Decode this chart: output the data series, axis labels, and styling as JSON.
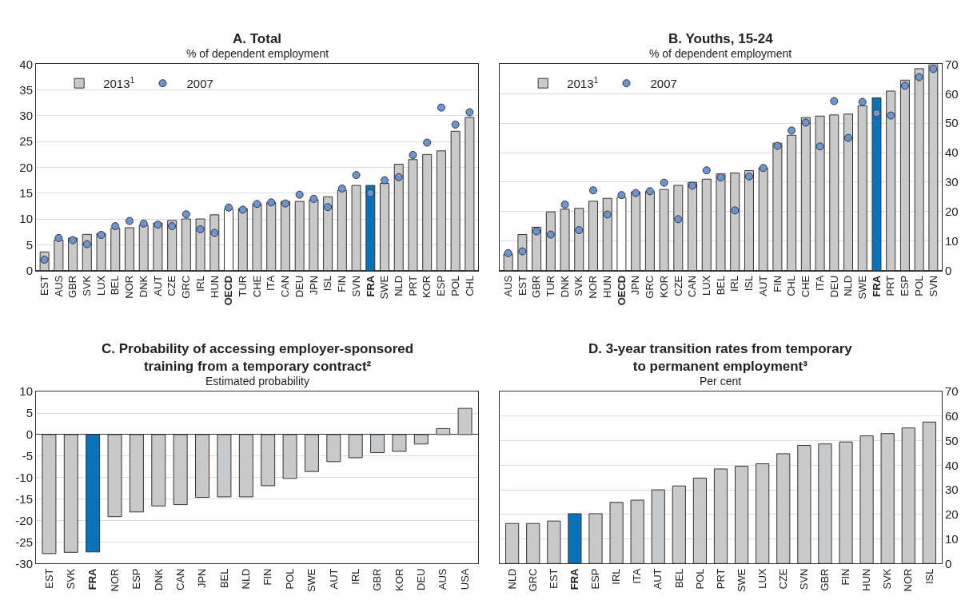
{
  "chart_data": [
    {
      "type": "bar",
      "title": "A. Total",
      "subtitle": "% of dependent employment",
      "categories": [
        "EST",
        "AUS",
        "GBR",
        "SVK",
        "LUX",
        "BEL",
        "NOR",
        "DNK",
        "AUT",
        "CZE",
        "GRC",
        "IRL",
        "HUN",
        "OECD",
        "TUR",
        "CHE",
        "ITA",
        "CAN",
        "DEU",
        "JPN",
        "ISL",
        "FIN",
        "SVN",
        "FRA",
        "SWE",
        "NLD",
        "PRT",
        "KOR",
        "ESP",
        "POL",
        "CHL"
      ],
      "series": [
        {
          "name": "2013$^{1}$",
          "color": "#c8c9cb",
          "colors": [
            "#c8c9cb",
            "#c8c9cb",
            "#c8c9cb",
            "#c8c9cb",
            "#c8c9cb",
            "#c8c9cb",
            "#c8c9cb",
            "#c8c9cb",
            "#c8c9cb",
            "#c8c9cb",
            "#c8c9cb",
            "#c8c9cb",
            "#c8c9cb",
            "#ffffff",
            "#c8c9cb",
            "#c8c9cb",
            "#c8c9cb",
            "#c8c9cb",
            "#c8c9cb",
            "#c8c9cb",
            "#c8c9cb",
            "#c8c9cb",
            "#c8c9cb",
            "#0b72b9",
            "#c8c9cb",
            "#c8c9cb",
            "#c8c9cb",
            "#c8c9cb",
            "#c8c9cb",
            "#c8c9cb",
            "#c8c9cb"
          ],
          "values": [
            3.6,
            5.9,
            6.3,
            7.0,
            7.2,
            8.2,
            8.3,
            8.8,
            9.2,
            9.7,
            10.0,
            10.0,
            10.8,
            11.9,
            12.0,
            12.9,
            13.2,
            13.4,
            13.4,
            13.7,
            14.3,
            15.5,
            16.5,
            16.5,
            16.9,
            20.6,
            21.5,
            22.5,
            23.2,
            27.0,
            29.7
          ]
        },
        {
          "name": "2007",
          "type": "scatter",
          "color": "#6d93d1",
          "values": [
            2.1,
            6.3,
            5.9,
            5.1,
            6.9,
            8.6,
            9.6,
            9.1,
            8.9,
            8.6,
            10.9,
            8.0,
            7.3,
            12.2,
            11.8,
            12.9,
            13.2,
            13.0,
            14.7,
            13.9,
            12.3,
            15.9,
            18.5,
            15.0,
            17.5,
            18.1,
            22.4,
            24.8,
            31.6,
            28.3,
            30.7
          ]
        }
      ],
      "ylim": [
        0,
        40
      ],
      "yticks": [
        0,
        5,
        10,
        15,
        20,
        25,
        30,
        35,
        40
      ],
      "grid": "y",
      "legend": "top left",
      "marker": "circle"
    },
    {
      "type": "bar",
      "title": "B. Youths, 15-24",
      "subtitle": "% of dependent employment",
      "categories": [
        "AUS",
        "EST",
        "GBR",
        "TUR",
        "DNK",
        "SVK",
        "NOR",
        "HUN",
        "OECD",
        "JPN",
        "GRC",
        "KOR",
        "CZE",
        "CAN",
        "LUX",
        "BEL",
        "IRL",
        "ISL",
        "AUT",
        "FIN",
        "CHL",
        "CHE",
        "ITA",
        "DEU",
        "NLD",
        "SWE",
        "FRA",
        "PRT",
        "ESP",
        "POL",
        "SVN"
      ],
      "series": [
        {
          "name": "2013$^{1}$",
          "axis": "y2",
          "color": "#c8c9cb",
          "colors": [
            "#c8c9cb",
            "#c8c9cb",
            "#c8c9cb",
            "#c8c9cb",
            "#c8c9cb",
            "#c8c9cb",
            "#c8c9cb",
            "#c8c9cb",
            "#ffffff",
            "#c8c9cb",
            "#c8c9cb",
            "#c8c9cb",
            "#c8c9cb",
            "#c8c9cb",
            "#c8c9cb",
            "#c8c9cb",
            "#c8c9cb",
            "#c8c9cb",
            "#c8c9cb",
            "#c8c9cb",
            "#c8c9cb",
            "#c8c9cb",
            "#c8c9cb",
            "#c8c9cb",
            "#c8c9cb",
            "#c8c9cb",
            "#0b72b9",
            "#c8c9cb",
            "#c8c9cb",
            "#c8c9cb",
            "#c8c9cb"
          ],
          "values": [
            5.6,
            12.2,
            14.7,
            19.9,
            20.8,
            21.1,
            23.5,
            24.5,
            24.8,
            26.7,
            26.8,
            27.5,
            28.9,
            29.9,
            31.0,
            32.8,
            33.1,
            33.9,
            34.8,
            43.2,
            45.9,
            51.9,
            52.4,
            52.8,
            53.1,
            55.9,
            58.6,
            60.9,
            64.6,
            68.5,
            69.9
          ]
        },
        {
          "name": "2007",
          "type": "scatter",
          "axis": "y2",
          "color": "#6d93d1",
          "values": [
            5.9,
            6.5,
            13.3,
            12.2,
            22.4,
            13.7,
            27.2,
            19.0,
            25.6,
            26.3,
            26.9,
            29.8,
            17.4,
            28.8,
            34.0,
            31.6,
            20.4,
            31.9,
            34.8,
            42.3,
            47.5,
            50.2,
            42.1,
            57.5,
            45.0,
            57.2,
            53.4,
            52.6,
            62.7,
            65.6,
            68.4
          ]
        }
      ],
      "y2lim": [
        0,
        70
      ],
      "y2ticks": [
        0,
        10,
        20,
        30,
        40,
        50,
        60,
        70
      ],
      "grid": "y",
      "legend": "top left",
      "marker": "circle"
    },
    {
      "type": "bar",
      "title": "C. Probability of accessing employer-sponsored\ntraining from a temporary contract²",
      "subtitle": "Estimated probability",
      "categories": [
        "EST",
        "SVK",
        "FRA",
        "NOR",
        "ESP",
        "DNK",
        "CAN",
        "JPN",
        "BEL",
        "NLD",
        "FIN",
        "POL",
        "SWE",
        "AUT",
        "IRL",
        "GBR",
        "KOR",
        "DEU",
        "AUS",
        "USA"
      ],
      "series": [
        {
          "color": "#c8c9cb",
          "colors": [
            "#c8c9cb",
            "#c8c9cb",
            "#0b72b9",
            "#c8c9cb",
            "#c8c9cb",
            "#c8c9cb",
            "#c8c9cb",
            "#c8c9cb",
            "#c8c9cb",
            "#c8c9cb",
            "#c8c9cb",
            "#c8c9cb",
            "#c8c9cb",
            "#c8c9cb",
            "#c8c9cb",
            "#c8c9cb",
            "#c8c9cb",
            "#c8c9cb",
            "#c8c9cb",
            "#c8c9cb"
          ],
          "values": [
            -27.7,
            -27.4,
            -27.3,
            -19.1,
            -18.0,
            -16.6,
            -16.3,
            -14.6,
            -14.5,
            -14.5,
            -11.9,
            -10.2,
            -8.6,
            -6.3,
            -5.4,
            -4.2,
            -3.9,
            -2.2,
            1.4,
            6.1
          ]
        }
      ],
      "ylim": [
        -30,
        10
      ],
      "yticks": [
        -30,
        -25,
        -20,
        -15,
        -10,
        -5,
        0,
        5,
        10
      ],
      "grid": "y"
    },
    {
      "type": "bar",
      "title": "D. 3-year transition rates from temporary\nto permanent employment³",
      "subtitle": "Per cent",
      "categories": [
        "NLD",
        "GRC",
        "EST",
        "FRA",
        "ESP",
        "IRL",
        "ITA",
        "AUT",
        "BEL",
        "POL",
        "PRT",
        "SWE",
        "LUX",
        "CZE",
        "SVN",
        "GBR",
        "FIN",
        "HUN",
        "SVK",
        "NOR",
        "ISL"
      ],
      "series": [
        {
          "axis": "y2",
          "color": "#c8c9cb",
          "colors": [
            "#c8c9cb",
            "#c8c9cb",
            "#c8c9cb",
            "#0b72b9",
            "#c8c9cb",
            "#c8c9cb",
            "#c8c9cb",
            "#c8c9cb",
            "#c8c9cb",
            "#c8c9cb",
            "#c8c9cb",
            "#c8c9cb",
            "#c8c9cb",
            "#c8c9cb",
            "#c8c9cb",
            "#c8c9cb",
            "#c8c9cb",
            "#c8c9cb",
            "#c8c9cb",
            "#c8c9cb",
            "#c8c9cb"
          ],
          "values": [
            16.3,
            16.3,
            17.3,
            20.3,
            20.3,
            24.9,
            25.8,
            30.0,
            31.6,
            34.8,
            38.5,
            39.6,
            40.6,
            44.7,
            48.1,
            48.7,
            49.5,
            52.0,
            52.9,
            55.2,
            57.6
          ]
        }
      ],
      "y2lim": [
        0,
        70
      ],
      "y2ticks": [
        0,
        10,
        20,
        30,
        40,
        50,
        60,
        70
      ],
      "grid": "y"
    }
  ]
}
